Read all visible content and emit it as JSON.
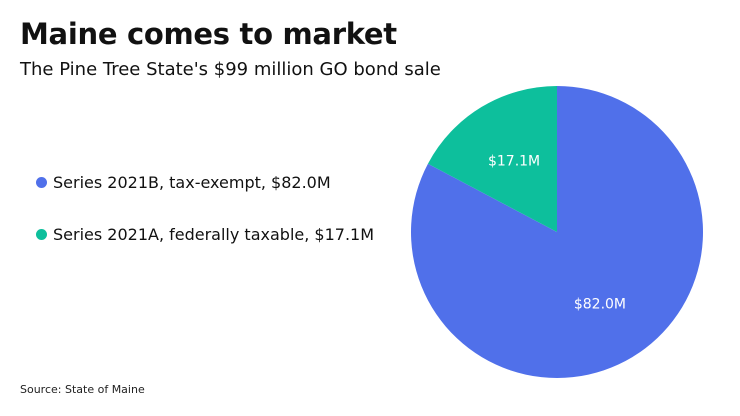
{
  "title": "Maine comes to market",
  "subtitle": "The Pine Tree State's $99 million GO bond sale",
  "source": "Source: State of Maine",
  "chart_data": {
    "type": "pie",
    "title": "Maine comes to market",
    "subtitle": "The Pine Tree State's $99 million GO bond sale",
    "legend_position": "left",
    "unit": "$M",
    "slices": [
      {
        "name": "Series 2021B, tax-exempt",
        "value": 82.0,
        "label": "$82.0M",
        "legend_label": "Series 2021B, tax-exempt, $82.0M",
        "color": "#5070EA"
      },
      {
        "name": "Series 2021A, federally taxable",
        "value": 17.1,
        "label": "$17.1M",
        "legend_label": "Series 2021A, federally taxable, $17.1M",
        "color": "#0DBF9C"
      }
    ]
  }
}
